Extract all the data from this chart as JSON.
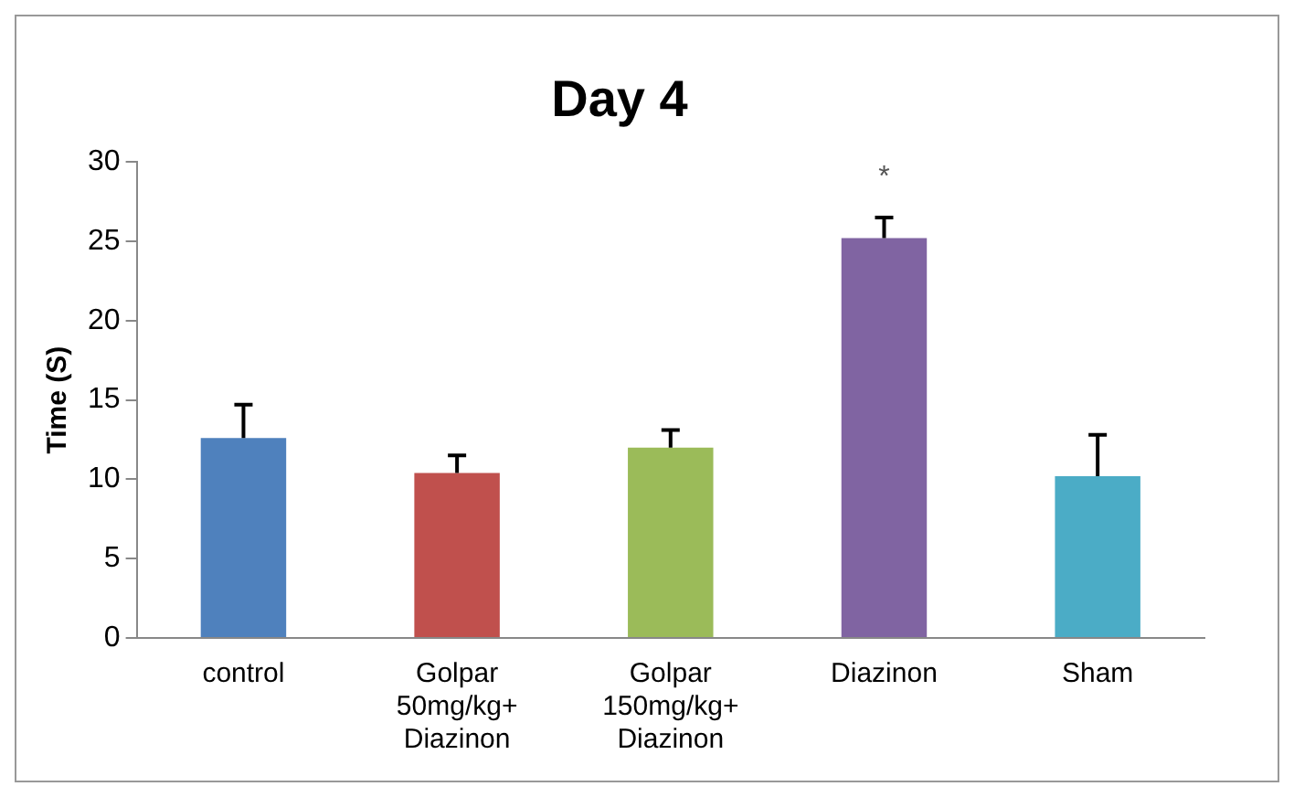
{
  "chart_data": {
    "type": "bar",
    "title": "Day 4",
    "ylabel": "Time (S)",
    "categories": [
      "control",
      "Golpar 50mg/kg+ Diazinon",
      "Golpar 150mg/kg+ Diazinon",
      "Diazinon",
      "Sham"
    ],
    "values": [
      12.6,
      10.4,
      12.0,
      25.2,
      10.2
    ],
    "colors": [
      "#4f81bd",
      "#c0504d",
      "#9bbb59",
      "#8064a2",
      "#4bacc6"
    ],
    "errors": [
      [
        12.6,
        14.7
      ],
      [
        10.4,
        11.5
      ],
      [
        12.0,
        13.1
      ],
      [
        25.2,
        26.5
      ],
      [
        10.2,
        12.8
      ]
    ],
    "annotations": [
      "*"
    ],
    "ylim": [
      0,
      30
    ],
    "yticks": [
      0,
      5,
      10,
      15,
      20,
      25,
      30
    ],
    "grid": false,
    "legend": false
  }
}
